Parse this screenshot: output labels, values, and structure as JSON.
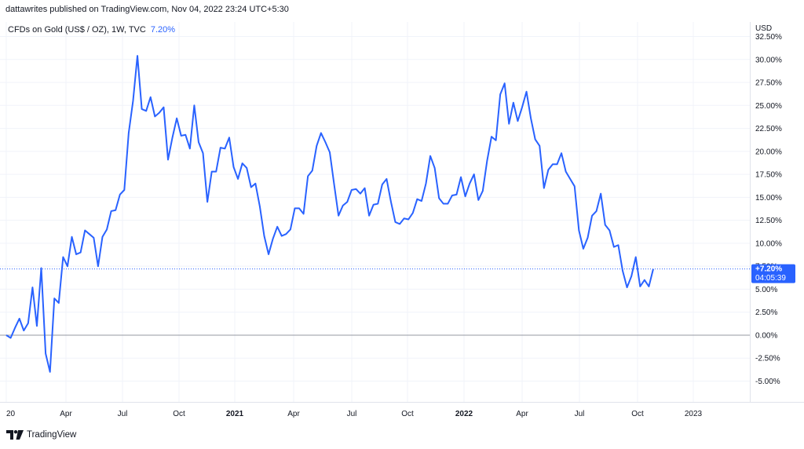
{
  "header": {
    "publish_line": "dattawrites published on TradingView.com, Nov 04, 2022 23:24 UTC+5:30"
  },
  "legend": {
    "symbol": "CFDs on Gold (US$ / OZ), 1W, TVC",
    "value": "7.20%"
  },
  "price_axis": {
    "currency": "USD"
  },
  "last_value_badge": {
    "value": "+7.20%",
    "countdown": "04:05:39"
  },
  "footer": {
    "brand": "TradingView"
  },
  "colors": {
    "line": "#2962ff",
    "zero_line": "#9598a1",
    "grid": "#f0f3fa",
    "badge": "#2962ff",
    "text": "#131722"
  },
  "chart_data": {
    "type": "line",
    "y_unit": "%",
    "ylim": [
      -5.0,
      32.5
    ],
    "y_ticks": [
      "32.50%",
      "30.00%",
      "27.50%",
      "25.00%",
      "22.50%",
      "20.00%",
      "17.50%",
      "15.00%",
      "12.50%",
      "10.00%",
      "7.50%",
      "5.00%",
      "2.50%",
      "0.00%",
      "-2.50%",
      "-5.00%"
    ],
    "y_tick_values": [
      32.5,
      30.0,
      27.5,
      25.0,
      22.5,
      20.0,
      17.5,
      15.0,
      12.5,
      10.0,
      7.5,
      5.0,
      2.5,
      0.0,
      -2.5,
      -5.0
    ],
    "x_ticks": [
      "20",
      "Apr",
      "Jul",
      "Oct",
      "2021",
      "Apr",
      "Jul",
      "Oct",
      "2022",
      "Apr",
      "Jul",
      "Oct",
      "2023"
    ],
    "x_tick_bold": [
      false,
      false,
      false,
      false,
      true,
      false,
      false,
      false,
      true,
      false,
      false,
      false,
      false
    ],
    "zero_line": 0.0,
    "last_value": 7.2,
    "series": [
      {
        "values": [
          0.0,
          -0.3,
          0.8,
          1.8,
          0.5,
          1.3,
          5.2,
          1.0,
          7.3,
          -2.0,
          -4.0,
          4.0,
          3.5,
          8.5,
          7.5,
          10.7,
          8.8,
          9.0,
          11.4,
          11.0,
          10.6,
          7.5,
          10.7,
          11.5,
          13.5,
          13.6,
          15.3,
          15.8,
          22.0,
          25.5,
          30.4,
          24.6,
          24.4,
          25.9,
          23.8,
          24.2,
          24.8,
          19.1,
          21.5,
          23.6,
          21.7,
          21.8,
          20.3,
          25.0,
          21.0,
          19.8,
          14.5,
          17.8,
          17.8,
          20.4,
          20.3,
          21.5,
          18.3,
          17.0,
          18.7,
          18.2,
          16.1,
          16.5,
          14.0,
          10.8,
          8.8,
          10.5,
          11.8,
          10.8,
          11.0,
          11.5,
          13.8,
          13.8,
          13.2,
          17.3,
          17.9,
          20.6,
          22.0,
          21.0,
          19.9,
          16.4,
          13.0,
          14.1,
          14.5,
          15.8,
          15.9,
          15.4,
          16.0,
          13.0,
          14.2,
          14.3,
          16.4,
          17.0,
          14.5,
          12.3,
          12.1,
          12.7,
          12.6,
          13.3,
          14.8,
          14.6,
          16.5,
          19.5,
          18.2,
          14.9,
          14.3,
          14.3,
          15.2,
          15.3,
          17.2,
          15.1,
          16.5,
          17.5,
          14.7,
          15.7,
          19.0,
          21.6,
          21.2,
          26.2,
          27.4,
          23.0,
          25.3,
          23.3,
          24.8,
          26.5,
          23.6,
          21.3,
          20.6,
          16.0,
          18.0,
          18.6,
          18.6,
          19.8,
          17.8,
          17.0,
          16.2,
          11.4,
          9.4,
          10.6,
          13.0,
          13.5,
          15.4,
          12.0,
          11.4,
          9.6,
          9.8,
          7.0,
          5.2,
          6.4,
          8.5,
          5.3,
          6.0,
          5.3,
          7.2
        ]
      }
    ]
  }
}
